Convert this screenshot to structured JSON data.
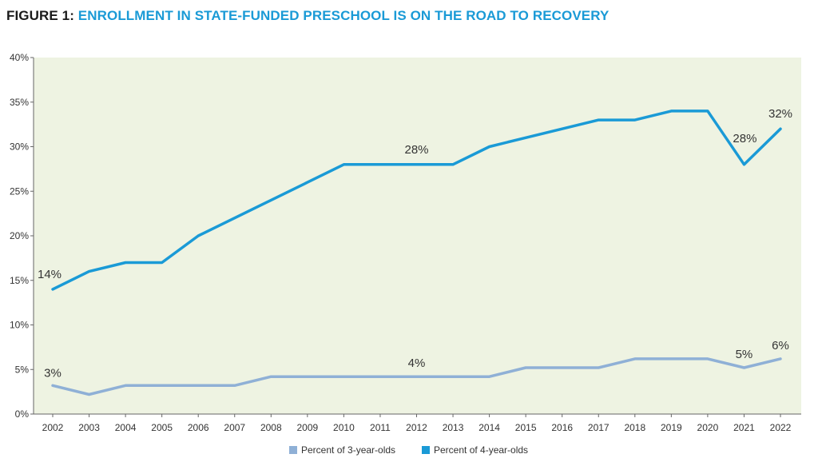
{
  "header": {
    "prefix": "FIGURE 1:",
    "title": "ENROLLMENT IN STATE-FUNDED PRESCHOOL IS ON THE ROAD TO RECOVERY"
  },
  "chart_data": {
    "type": "line",
    "x": [
      "2002",
      "2003",
      "2004",
      "2005",
      "2006",
      "2007",
      "2008",
      "2009",
      "2010",
      "2011",
      "2012",
      "2013",
      "2014",
      "2015",
      "2016",
      "2017",
      "2018",
      "2019",
      "2020",
      "2021",
      "2022"
    ],
    "ylim": [
      0,
      40
    ],
    "yticks": [
      0,
      5,
      10,
      15,
      20,
      25,
      30,
      35,
      40
    ],
    "ytick_labels": [
      "0%",
      "5%",
      "10%",
      "15%",
      "20%",
      "25%",
      "30%",
      "35%",
      "40%"
    ],
    "grid": false,
    "legend_position": "bottom-center",
    "background_color": "#eef3e2",
    "series": [
      {
        "name": "Percent of 3-year-olds",
        "color": "#8fb0d6",
        "values": [
          3.2,
          2.2,
          3.2,
          3.2,
          3.2,
          3.2,
          4.2,
          4.2,
          4.2,
          4.2,
          4.2,
          4.2,
          4.2,
          5.2,
          5.2,
          5.2,
          6.2,
          6.2,
          6.2,
          5.2,
          6.2
        ]
      },
      {
        "name": "Percent of 4-year-olds",
        "color": "#1a9ad6",
        "values": [
          14,
          16,
          17,
          17,
          20,
          22,
          24,
          26,
          28,
          28,
          28,
          28,
          30,
          31,
          32,
          33,
          33,
          34,
          34,
          28,
          32
        ]
      }
    ],
    "annotations": [
      {
        "series": 1,
        "x": "2002",
        "text": "14%"
      },
      {
        "series": 1,
        "x": "2012",
        "text": "28%"
      },
      {
        "series": 1,
        "x": "2021",
        "text": "28%"
      },
      {
        "series": 1,
        "x": "2022",
        "text": "32%"
      },
      {
        "series": 0,
        "x": "2002",
        "text": "3%"
      },
      {
        "series": 0,
        "x": "2012",
        "text": "4%"
      },
      {
        "series": 0,
        "x": "2021",
        "text": "5%"
      },
      {
        "series": 0,
        "x": "2022",
        "text": "6%"
      }
    ]
  }
}
